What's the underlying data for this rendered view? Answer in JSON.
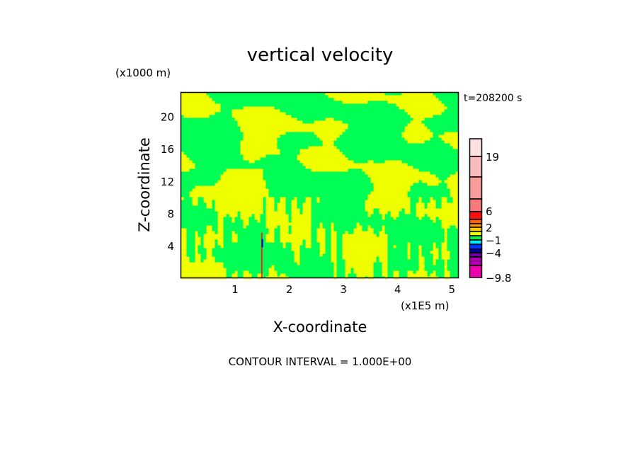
{
  "chart_data": {
    "type": "heatmap",
    "title": "vertical velocity",
    "xlabel": "X-coordinate",
    "ylabel": "Z-coordinate",
    "x_unit": "(x1E5 m)",
    "y_unit": "(x1000 m)",
    "time_label": "t=208200 s",
    "footer": "CONTOUR INTERVAL = 1.000E+00",
    "xlim": [
      0,
      5.12
    ],
    "ylim": [
      0,
      23
    ],
    "x_ticks": [
      "1",
      "2",
      "3",
      "4",
      "5"
    ],
    "y_ticks": [
      "4",
      "8",
      "12",
      "16",
      "20"
    ],
    "colorbar": {
      "labels": [
        "19",
        "6",
        "2",
        "−1",
        "−4",
        "−9.8"
      ],
      "colors_top_to_bottom": [
        "#fde0e0",
        "#fbbcbc",
        "#f99c9c",
        "#f77a7a",
        "#fa1010",
        "#ff6600",
        "#ff9900",
        "#ffcc00",
        "#eeff00",
        "#11ee44",
        "#00eeff",
        "#0033ff",
        "#0000aa",
        "#660099",
        "#aa00aa",
        "#ee00aa"
      ]
    },
    "field_colors": {
      "positive": "#f0ff00",
      "negative": "#00ff55",
      "updraft": "#ff2020",
      "downdraft": "#0000cc"
    }
  }
}
